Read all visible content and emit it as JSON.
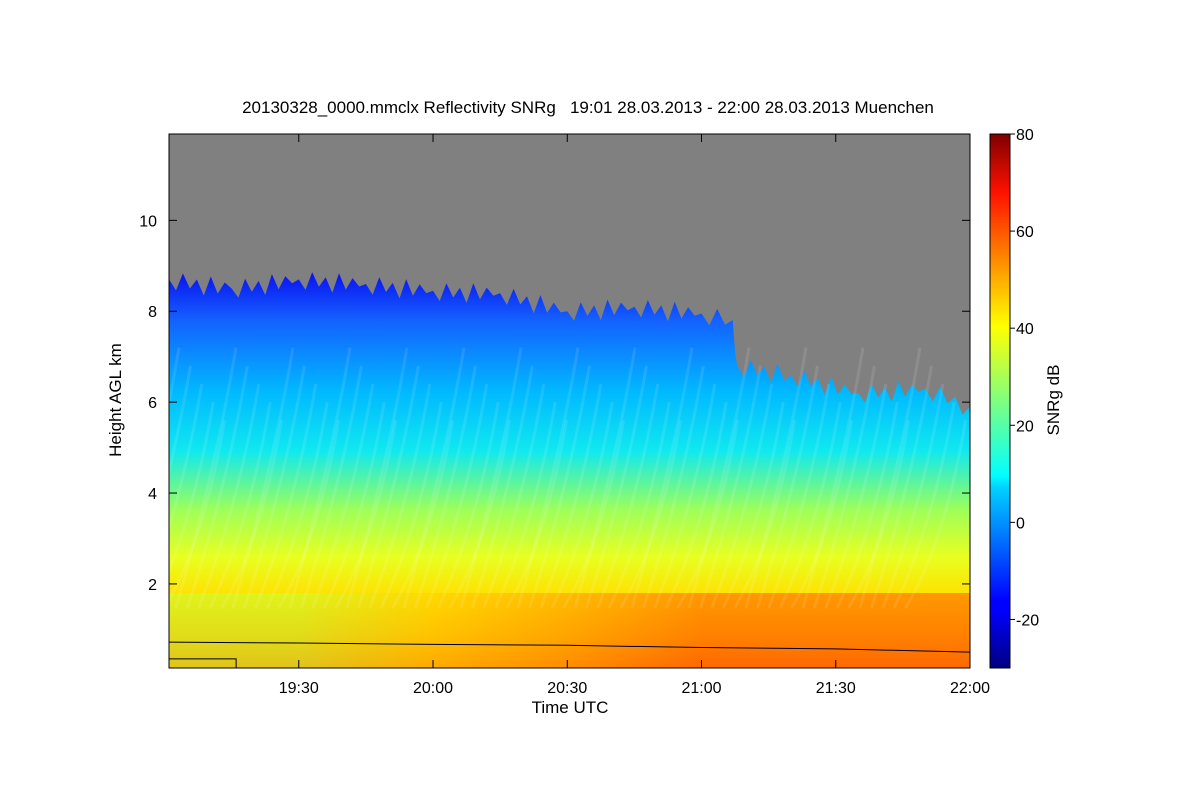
{
  "chart_data": {
    "type": "heatmap",
    "title": "20130328_0000.mmclx Reflectivity SNRg   19:01 28.03.2013 - 22:00 28.03.2013 Muenchen",
    "xlabel": "Time UTC",
    "ylabel": "Height AGL km",
    "colorbar_label": "SNRg dB",
    "x_range": [
      "19:01",
      "22:00"
    ],
    "x_ticks": [
      "19:30",
      "20:00",
      "20:30",
      "21:00",
      "21:30",
      "22:00"
    ],
    "y_range_km": [
      0.15,
      11.9
    ],
    "y_ticks": [
      2,
      4,
      6,
      8,
      10
    ],
    "colorbar_range": [
      -30,
      80
    ],
    "colorbar_ticks": [
      -20,
      0,
      20,
      40,
      60,
      80
    ],
    "colormap": "jet",
    "no_signal_color": "#808080",
    "echo_top_km": [
      {
        "time": "19:01",
        "top": 8.7
      },
      {
        "time": "19:15",
        "top": 8.5
      },
      {
        "time": "19:30",
        "top": 8.7
      },
      {
        "time": "19:45",
        "top": 8.6
      },
      {
        "time": "20:00",
        "top": 8.45
      },
      {
        "time": "20:15",
        "top": 8.4
      },
      {
        "time": "20:30",
        "top": 8.0
      },
      {
        "time": "20:45",
        "top": 8.1
      },
      {
        "time": "21:00",
        "top": 7.95
      },
      {
        "time": "21:07",
        "top": 7.8
      },
      {
        "time": "21:08",
        "top": 6.8
      },
      {
        "time": "21:20",
        "top": 6.6
      },
      {
        "time": "21:35",
        "top": 6.2
      },
      {
        "time": "21:50",
        "top": 6.3
      },
      {
        "time": "22:00",
        "top": 5.9
      }
    ],
    "near_surface_snr_db": [
      {
        "time": "19:01",
        "snr": 35
      },
      {
        "time": "19:30",
        "snr": 36
      },
      {
        "time": "20:00",
        "snr": 40
      },
      {
        "time": "20:30",
        "snr": 50
      },
      {
        "time": "21:00",
        "snr": 58
      },
      {
        "time": "21:30",
        "snr": 58
      },
      {
        "time": "22:00",
        "snr": 60
      }
    ],
    "boundary_line_km": [
      {
        "time": "19:01",
        "height": 0.72
      },
      {
        "time": "19:30",
        "height": 0.7
      },
      {
        "time": "20:00",
        "height": 0.67
      },
      {
        "time": "20:30",
        "height": 0.65
      },
      {
        "time": "21:00",
        "height": 0.6
      },
      {
        "time": "21:30",
        "height": 0.57
      },
      {
        "time": "22:00",
        "height": 0.5
      }
    ],
    "grid": false
  }
}
